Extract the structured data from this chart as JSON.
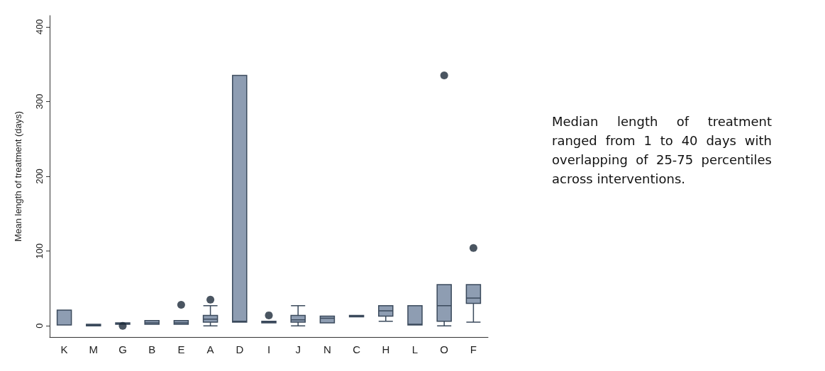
{
  "chart_data": {
    "type": "box",
    "ylabel": "Mean length of treatment (days)",
    "color": "#8e9db2",
    "categories": [
      "K",
      "M",
      "G",
      "B",
      "E",
      "A",
      "D",
      "I",
      "J",
      "N",
      "C",
      "H",
      "L",
      "O",
      "F"
    ],
    "boxes": [
      {
        "low": 1,
        "q1": 1,
        "median": 1,
        "q3": 21,
        "high": 21
      },
      {
        "low": 0,
        "q1": 0,
        "median": 1,
        "q3": 2,
        "high": 2
      },
      {
        "low": 2,
        "q1": 2,
        "median": 3,
        "q3": 4,
        "high": 4,
        "outliers": [
          0
        ]
      },
      {
        "low": 2,
        "q1": 2,
        "median": 4,
        "q3": 7,
        "high": 7
      },
      {
        "low": 2,
        "q1": 2,
        "median": 4,
        "q3": 7,
        "high": 7,
        "outliers": [
          28
        ]
      },
      {
        "low": 0,
        "q1": 5,
        "median": 9,
        "q3": 14,
        "high": 27,
        "outliers": [
          35
        ]
      },
      {
        "low": 5,
        "q1": 5,
        "median": 6,
        "q3": 335,
        "high": 335
      },
      {
        "low": 4,
        "q1": 4,
        "median": 5,
        "q3": 6,
        "high": 6,
        "outliers": [
          14
        ]
      },
      {
        "low": 0,
        "q1": 5,
        "median": 8,
        "q3": 14,
        "high": 27
      },
      {
        "low": 4,
        "q1": 4,
        "median": 10,
        "q3": 13,
        "high": 13
      },
      {
        "low": 12,
        "q1": 12,
        "median": 13,
        "q3": 14,
        "high": 14
      },
      {
        "low": 6,
        "q1": 13,
        "median": 20,
        "q3": 27,
        "high": 27
      },
      {
        "low": 1,
        "q1": 1,
        "median": 2,
        "q3": 27,
        "high": 27
      },
      {
        "low": 0,
        "q1": 6,
        "median": 27,
        "q3": 55,
        "high": 55,
        "outliers": [
          335
        ]
      },
      {
        "low": 5,
        "q1": 30,
        "median": 37,
        "q3": 55,
        "high": 55,
        "outliers": [
          104
        ]
      }
    ],
    "ylim": [
      -15,
      415
    ],
    "yticks": [
      0,
      100,
      200,
      300,
      400
    ],
    "annotations": [
      "Median length of treatment ranged from 1 to 40 days with overlapping of 25-75 percentiles across interventions."
    ]
  }
}
